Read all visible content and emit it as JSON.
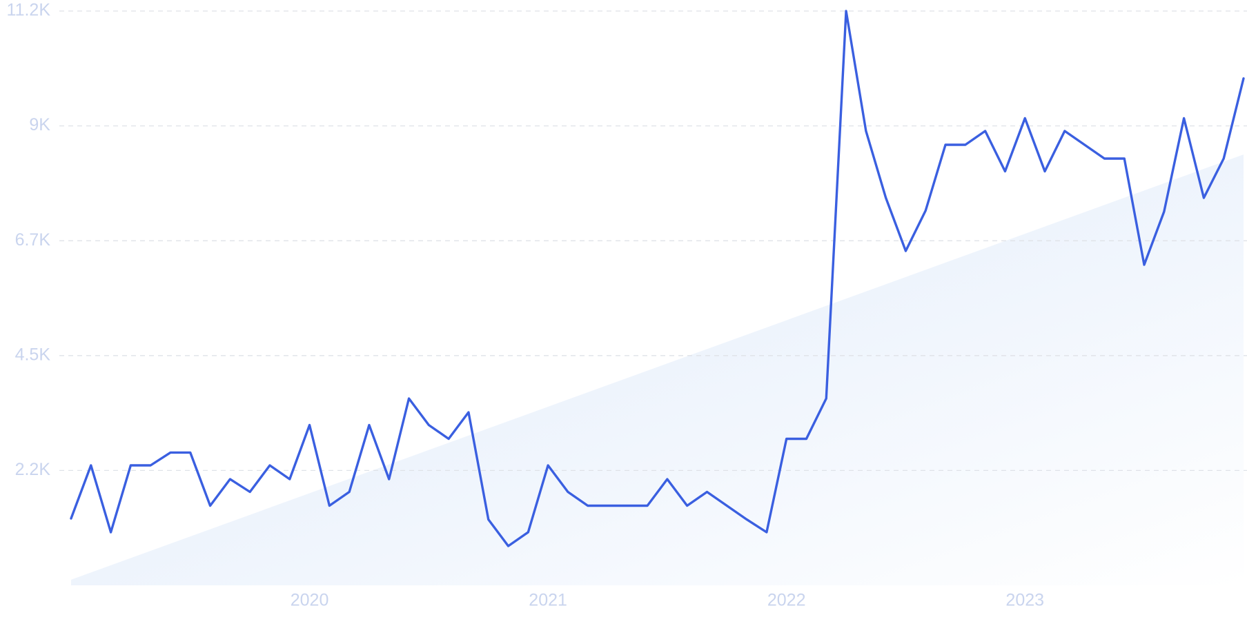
{
  "chart_data": {
    "type": "line",
    "categories": [
      null,
      null,
      null,
      null,
      null,
      null,
      null,
      null,
      null,
      null,
      null,
      null,
      "2020",
      null,
      null,
      null,
      null,
      null,
      null,
      null,
      null,
      null,
      null,
      null,
      "2021",
      null,
      null,
      null,
      null,
      null,
      null,
      null,
      null,
      null,
      null,
      null,
      "2022",
      null,
      null,
      null,
      null,
      null,
      null,
      null,
      null,
      null,
      null,
      null,
      "2023",
      null,
      null,
      null,
      null,
      null,
      null,
      null,
      null,
      null,
      null,
      null
    ],
    "series": [
      {
        "color": "#3a5fe0",
        "values": [
          1310,
          2350,
          1040,
          2350,
          2350,
          2600,
          2600,
          1560,
          2080,
          1830,
          2350,
          2080,
          3140,
          1560,
          1830,
          3140,
          2080,
          3660,
          3140,
          2870,
          3390,
          1290,
          770,
          1040,
          2350,
          1830,
          1560,
          1560,
          1560,
          1560,
          2080,
          1560,
          1830,
          1560,
          1290,
          1040,
          2870,
          2870,
          3660,
          11250,
          8900,
          7590,
          6550,
          7340,
          8630,
          8630,
          8900,
          8110,
          9150,
          8110,
          8900,
          8630,
          8360,
          8360,
          6280,
          7320,
          9150,
          7590,
          8360,
          9930
        ]
      }
    ],
    "trend": {
      "color": "#e2ecfb",
      "values": [
        110,
        8440
      ]
    },
    "ylim": [
      0,
      11250
    ],
    "yticks": [
      {
        "value": 2250,
        "label": "2.2K"
      },
      {
        "value": 4500,
        "label": "4.5K"
      },
      {
        "value": 6750,
        "label": "6.7K"
      },
      {
        "value": 9000,
        "label": "9K"
      },
      {
        "value": 11250,
        "label": "11.2K"
      }
    ],
    "grid": true
  }
}
